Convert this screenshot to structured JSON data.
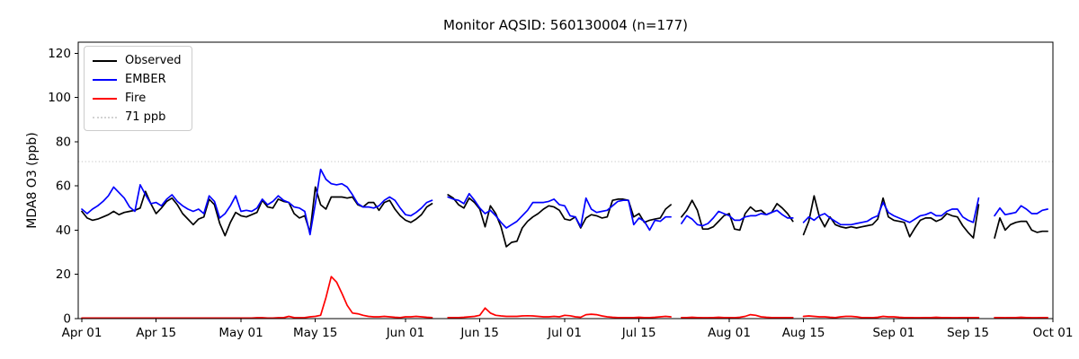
{
  "title": "Monitor AQSID: 560130004 (n=177)",
  "ylabel": "MDA8 O3 (ppb)",
  "background_color": "#ffffff",
  "spine_color": "#000000",
  "legend": {
    "position": "upper-left",
    "items": [
      {
        "label": "Observed",
        "color": "#000000",
        "style": "solid"
      },
      {
        "label": "EMBER",
        "color": "#0000ff",
        "style": "solid"
      },
      {
        "label": "Fire",
        "color": "#ff0000",
        "style": "solid"
      },
      {
        "label": "71 ppb",
        "color": "#d3d3d3",
        "style": "dotted"
      }
    ]
  },
  "chart_data": {
    "type": "line",
    "title": "Monitor AQSID: 560130004 (n=177)",
    "xlabel": "",
    "ylabel": "MDA8 O3 (ppb)",
    "ylim": [
      0,
      125
    ],
    "yticks": [
      0,
      20,
      40,
      60,
      80,
      100,
      120
    ],
    "grid": false,
    "n_days": 183,
    "x_start": "Apr 01",
    "x_end": "Oct 01",
    "missing_dates": [
      "Jun 07",
      "Jun 08",
      "Jul 22",
      "Aug 14",
      "Sep 18",
      "Sep 19"
    ],
    "threshold": {
      "label": "71 ppb",
      "value": 71,
      "color": "#d3d3d3",
      "style": "dotted"
    },
    "xtick_labels": [
      "Apr 01",
      "Apr 15",
      "May 01",
      "May 15",
      "Jun 01",
      "Jun 15",
      "Jul 01",
      "Jul 15",
      "Aug 01",
      "Aug 15",
      "Sep 01",
      "Sep 15",
      "Oct 01"
    ],
    "xtick_days": [
      0,
      14,
      30,
      44,
      61,
      75,
      91,
      105,
      122,
      136,
      153,
      167,
      183
    ],
    "series": [
      {
        "name": "Observed",
        "color": "#000000",
        "values": [
          48.5,
          45.5,
          44.5,
          45,
          46,
          47,
          48.5,
          47,
          48,
          48.5,
          49,
          50,
          57.5,
          52,
          47.5,
          50,
          53,
          54.5,
          51.5,
          47.5,
          45,
          42.5,
          45,
          46,
          54,
          51.5,
          43,
          37.5,
          43.5,
          48,
          46.5,
          46,
          47,
          48,
          53.5,
          50.5,
          50,
          54,
          53,
          52.5,
          47.5,
          45.5,
          46.5,
          39,
          59.5,
          51.5,
          49.5,
          55,
          55,
          55,
          54.5,
          55,
          51.5,
          50.5,
          52.5,
          52.5,
          49,
          52.5,
          53.5,
          49.5,
          46.5,
          44.5,
          43.5,
          45,
          47,
          50.5,
          52,
          null,
          null,
          56,
          54.5,
          51.5,
          50,
          54.5,
          52.5,
          49.5,
          41.5,
          51,
          47.5,
          41.5,
          32.5,
          34.5,
          35,
          41,
          44,
          46,
          47.5,
          49.5,
          51,
          50.5,
          49,
          45,
          44.5,
          46,
          41,
          45.5,
          47,
          46.5,
          45.5,
          46,
          53.5,
          54,
          54,
          53.5,
          46,
          47.5,
          43.5,
          44.5,
          45,
          45.5,
          49.5,
          51.5,
          null,
          46,
          49,
          53.5,
          49,
          40.5,
          40.5,
          41.5,
          44,
          46.5,
          47.5,
          40.5,
          40,
          47.5,
          50.5,
          48.5,
          49,
          47,
          48,
          52,
          50,
          47.5,
          44,
          null,
          38,
          44,
          55.5,
          46,
          41.5,
          46,
          42.5,
          41.5,
          41,
          41.5,
          41,
          41.5,
          42,
          42.5,
          45,
          54.5,
          46,
          44.5,
          44,
          43.5,
          37,
          41,
          44.5,
          45.5,
          45.5,
          44,
          45,
          47.5,
          46.5,
          46,
          42,
          39,
          36.5,
          51.5,
          null,
          null,
          36.5,
          45.5,
          40,
          42.5,
          43.5,
          44,
          44,
          40,
          39,
          39.5,
          39.5
        ]
      },
      {
        "name": "EMBER",
        "color": "#0000ff",
        "values": [
          49.5,
          47.5,
          49.5,
          51,
          53,
          55.5,
          59.5,
          57,
          54.5,
          50.5,
          48.5,
          60.5,
          56,
          52,
          52.5,
          51,
          54,
          56,
          53,
          51,
          49.5,
          48.5,
          49.5,
          47.5,
          55.5,
          53,
          45.5,
          47.5,
          51,
          55.5,
          48.5,
          49,
          48.5,
          50,
          54,
          51.5,
          53,
          55.5,
          53.5,
          52.5,
          50.5,
          50,
          48.5,
          38,
          52,
          67.5,
          63,
          61,
          60.5,
          61,
          59.5,
          56,
          52,
          50.5,
          50.5,
          50,
          51,
          53.5,
          55,
          53.5,
          50,
          47,
          46.5,
          48,
          50,
          52.5,
          53.5,
          null,
          null,
          55,
          54,
          53.5,
          52,
          56.5,
          53.5,
          50,
          47.5,
          49,
          46.5,
          43.5,
          41,
          42.5,
          44,
          46.5,
          49,
          52.5,
          52.5,
          52.5,
          53,
          54,
          51.5,
          51,
          46.5,
          46,
          41.5,
          54.5,
          49.5,
          48,
          48.5,
          49,
          51,
          53,
          53.5,
          53.5,
          42.5,
          45.5,
          44,
          40,
          44.5,
          44,
          46,
          46,
          null,
          43,
          46.5,
          45,
          42.5,
          42,
          43,
          45.5,
          48.5,
          47.5,
          46.5,
          44.5,
          44.5,
          46,
          46.5,
          46.5,
          47.5,
          47,
          48,
          49,
          47,
          45.5,
          45.5,
          null,
          43.5,
          46,
          44.5,
          46.5,
          47.5,
          45.5,
          44,
          42.5,
          42.5,
          42.5,
          43,
          43.5,
          44,
          45.5,
          46.5,
          52.5,
          48,
          46.5,
          45.5,
          44.5,
          43.5,
          45,
          46.5,
          47,
          48,
          46.5,
          46.5,
          48.5,
          49.5,
          49.5,
          46,
          44.5,
          43.5,
          54.5,
          null,
          null,
          46.5,
          50,
          47,
          47.5,
          48,
          51,
          49.5,
          47.5,
          47.5,
          49,
          49.5
        ]
      },
      {
        "name": "Fire",
        "color": "#ff0000",
        "values": [
          0.3,
          0.3,
          0.3,
          0.3,
          0.3,
          0.3,
          0.3,
          0.3,
          0.3,
          0.3,
          0.3,
          0.3,
          0.3,
          0.3,
          0.3,
          0.3,
          0.3,
          0.3,
          0.3,
          0.3,
          0.3,
          0.3,
          0.3,
          0.3,
          0.3,
          0.3,
          0.3,
          0.3,
          0.3,
          0.3,
          0.3,
          0.3,
          0.3,
          0.4,
          0.4,
          0.3,
          0.3,
          0.4,
          0.4,
          1,
          0.5,
          0.4,
          0.5,
          0.8,
          1,
          1.5,
          9.5,
          19,
          16.5,
          11.5,
          6,
          2.5,
          2.2,
          1.5,
          1,
          0.8,
          0.8,
          1,
          0.8,
          0.6,
          0.5,
          0.8,
          0.8,
          1,
          0.8,
          0.6,
          0.5,
          null,
          null,
          0.5,
          0.5,
          0.5,
          0.6,
          0.8,
          1,
          1.5,
          4.8,
          2.5,
          1.5,
          1.2,
          1,
          1,
          1,
          1.2,
          1.3,
          1.2,
          1,
          0.8,
          0.8,
          1,
          0.8,
          1.5,
          1.3,
          0.8,
          0.6,
          1.8,
          2,
          1.8,
          1.2,
          0.8,
          0.6,
          0.5,
          0.5,
          0.5,
          0.5,
          0.6,
          0.5,
          0.5,
          0.6,
          0.8,
          1,
          0.8,
          null,
          0.5,
          0.5,
          0.6,
          0.5,
          0.4,
          0.4,
          0.5,
          0.6,
          0.5,
          0.5,
          0.4,
          0.6,
          1,
          1.8,
          1.5,
          0.8,
          0.6,
          0.5,
          0.5,
          0.5,
          0.5,
          0.5,
          null,
          1,
          1.2,
          1,
          0.8,
          0.8,
          0.6,
          0.5,
          0.8,
          1,
          1,
          0.8,
          0.5,
          0.5,
          0.4,
          0.6,
          1,
          0.8,
          0.8,
          0.6,
          0.5,
          0.5,
          0.4,
          0.4,
          0.5,
          0.5,
          0.6,
          0.5,
          0.5,
          0.4,
          0.4,
          0.5,
          0.5,
          0.5,
          0.5,
          null,
          null,
          0.5,
          0.5,
          0.4,
          0.5,
          0.5,
          0.6,
          0.5,
          0.4,
          0.4,
          0.5,
          0.5
        ]
      }
    ]
  }
}
